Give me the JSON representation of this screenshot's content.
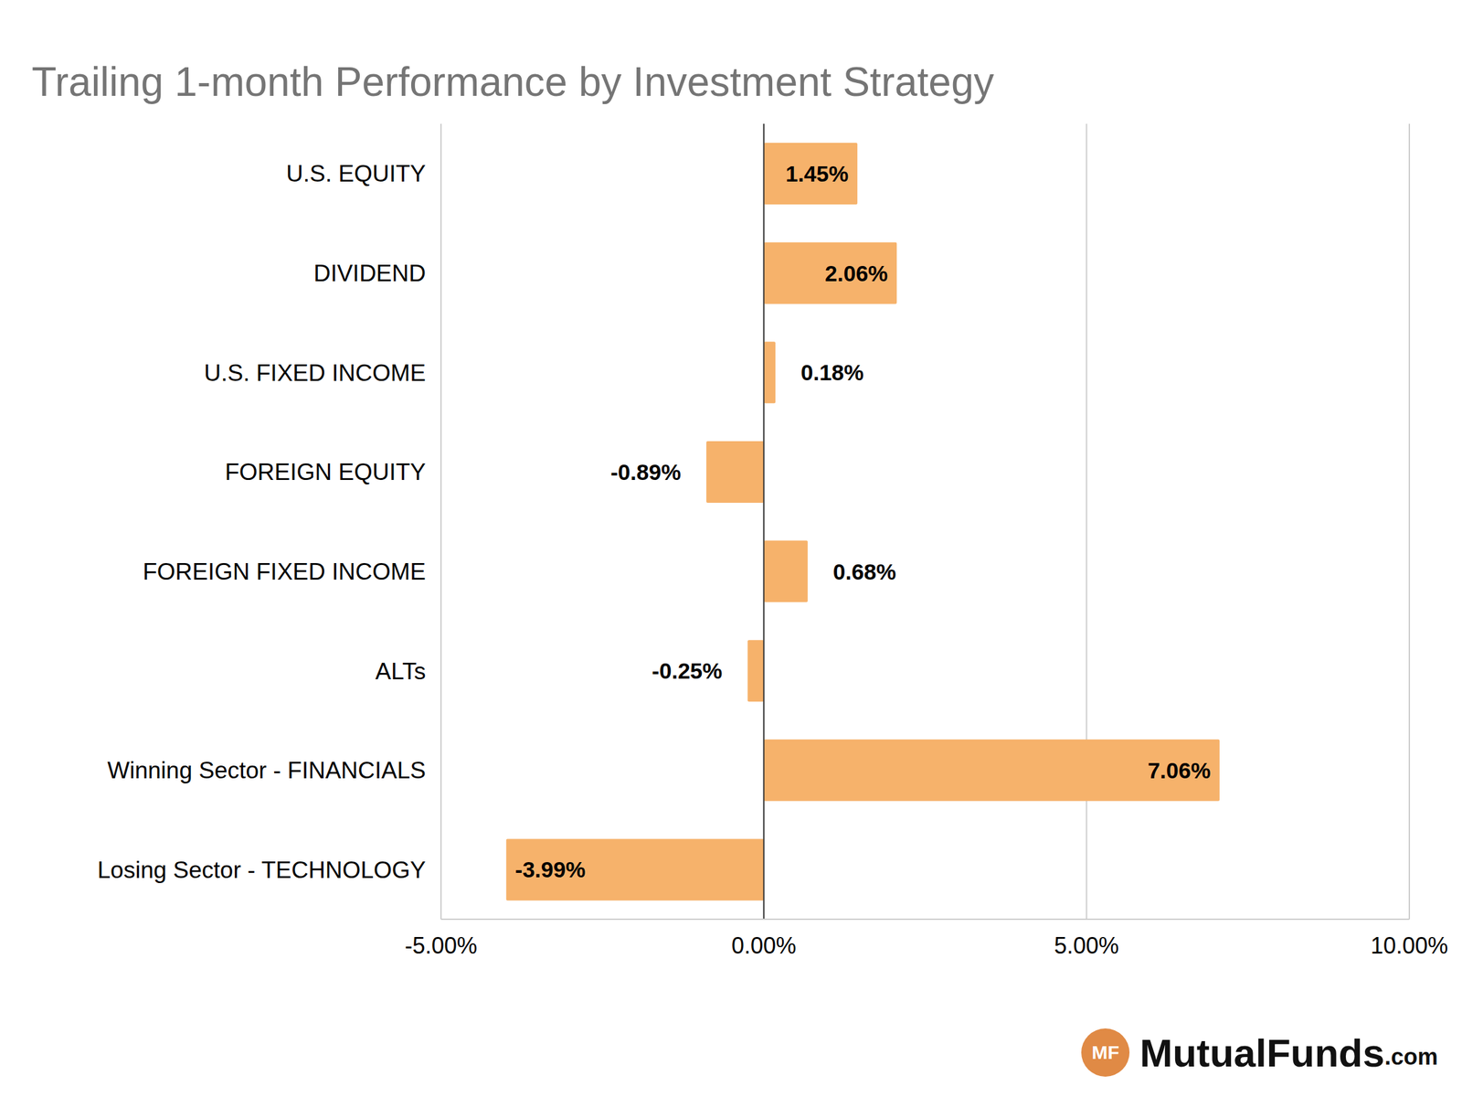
{
  "chart_data": {
    "type": "bar",
    "orientation": "horizontal",
    "title": "Trailing 1-month Performance by Investment Strategy",
    "categories": [
      "U.S. EQUITY",
      "DIVIDEND",
      "U.S. FIXED INCOME",
      "FOREIGN EQUITY",
      "FOREIGN FIXED INCOME",
      "ALTs",
      "Winning Sector - FINANCIALS",
      "Losing Sector - TECHNOLOGY"
    ],
    "values": [
      1.45,
      2.06,
      0.18,
      -0.89,
      0.68,
      -0.25,
      7.06,
      -3.99
    ],
    "value_labels": [
      "1.45%",
      "2.06%",
      "0.18%",
      "-0.89%",
      "0.68%",
      "-0.25%",
      "7.06%",
      "-3.99%"
    ],
    "data_labels": true,
    "color": "#f6b26b",
    "xlim": [
      -5,
      10
    ],
    "xticks": [
      {
        "value": -5,
        "label": "-5.00%"
      },
      {
        "value": 0,
        "label": "0.00%"
      },
      {
        "value": 5,
        "label": "5.00%"
      },
      {
        "value": 10,
        "label": "10.00%"
      }
    ],
    "grid": true,
    "legend": false,
    "annotations": [
      "MF",
      "MutualFunds",
      ".com"
    ]
  }
}
